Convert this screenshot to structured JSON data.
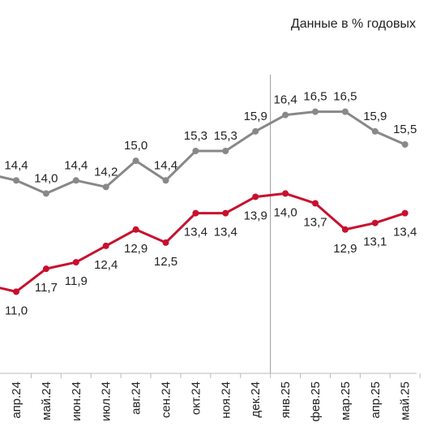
{
  "chart_data": {
    "type": "line",
    "note": "Данные в % годовых",
    "categories": [
      "апр.24",
      "май.24",
      "июн.24",
      "июл.24",
      "авг.24",
      "сен.24",
      "окт.24",
      "ноя.24",
      "дек.24",
      "янв.25",
      "фев.25",
      "мар.25",
      "апр.25",
      "май.25"
    ],
    "ylim": [
      9,
      18.5
    ],
    "grid": false,
    "legend": "none",
    "vertical_marker_between": [
      "дек.24",
      "янв.25"
    ],
    "series": [
      {
        "color": "#888888",
        "values": [
          14.4,
          14.0,
          14.4,
          14.2,
          15.0,
          14.4,
          15.3,
          15.3,
          15.9,
          16.4,
          16.5,
          16.5,
          15.9,
          15.5
        ],
        "labels": [
          "14,4",
          "14,0",
          "14,4",
          "14,2",
          "15,0",
          "14,4",
          "15,3",
          "15,3",
          "15,9",
          "16,4",
          "16,5",
          "16,5",
          "15,9",
          "15,5"
        ],
        "leading_values": [
          14.6
        ]
      },
      {
        "color": "#c8102e",
        "values": [
          11.0,
          11.7,
          11.9,
          12.4,
          12.9,
          12.5,
          13.4,
          13.4,
          13.9,
          14.0,
          13.7,
          12.9,
          13.1,
          13.4
        ],
        "labels": [
          "11,0",
          "11,7",
          "11,9",
          "12,4",
          "12,9",
          "12,5",
          "13,4",
          "13,4",
          "13,9",
          "14,0",
          "13,7",
          "12,9",
          "13,1",
          "13,4"
        ],
        "leading_values": [
          11.2
        ]
      }
    ]
  }
}
